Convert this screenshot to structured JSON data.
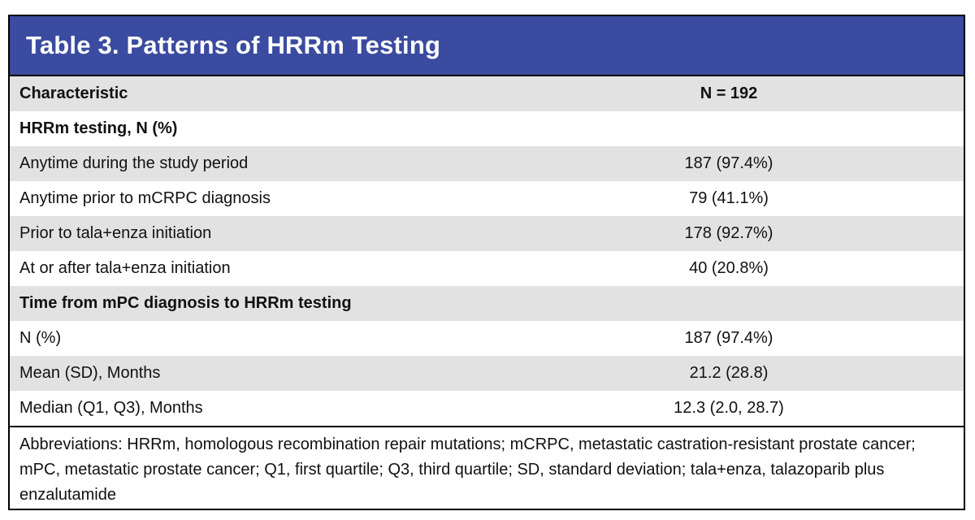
{
  "table": {
    "title": "Table 3. Patterns of HRRm Testing",
    "header": {
      "characteristic": "Characteristic",
      "value": "N = 192"
    },
    "sections": [
      {
        "heading": "HRRm testing, N (%)",
        "rows": [
          {
            "label": "Anytime during the study period",
            "value": "187 (97.4%)"
          },
          {
            "label": "Anytime prior to mCRPC diagnosis",
            "value": "79 (41.1%)"
          },
          {
            "label": "Prior to tala+enza initiation",
            "value": "178 (92.7%)"
          },
          {
            "label": "At or after tala+enza initiation",
            "value": "40 (20.8%)"
          }
        ]
      },
      {
        "heading": "Time from mPC diagnosis to HRRm testing",
        "rows": [
          {
            "label": "N (%)",
            "value": "187 (97.4%)"
          },
          {
            "label": "Mean (SD), Months",
            "value": "21.2 (28.8)"
          },
          {
            "label": "Median (Q1, Q3), Months",
            "value": "12.3 (2.0, 28.7)"
          }
        ]
      }
    ],
    "footnote": "Abbreviations: HRRm, homologous recombination repair mutations; mCRPC, metastatic castration-resistant prostate cancer; mPC, metastatic prostate cancer; Q1, first quartile; Q3, third quartile; SD, standard deviation; tala+enza, talazoparib plus enzalutamide"
  },
  "colors": {
    "title_background": "#3a4ba0",
    "shaded_row": "#e2e2e2",
    "border": "#000000"
  }
}
